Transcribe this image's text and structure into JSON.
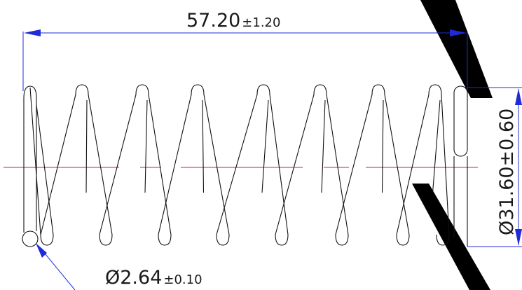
{
  "dimensions": {
    "length": {
      "value": "57.20",
      "tolerance": "±1.20"
    },
    "outer_diameter": {
      "value": "Ø31.60",
      "tolerance": "±0.60"
    },
    "wire_diameter": {
      "value": "Ø2.64",
      "tolerance": "±0.10"
    }
  },
  "colors": {
    "dimension_line": "#1f2bd6",
    "center_line": "#e0141a",
    "outline": "#111111",
    "watermark": "#000000"
  }
}
